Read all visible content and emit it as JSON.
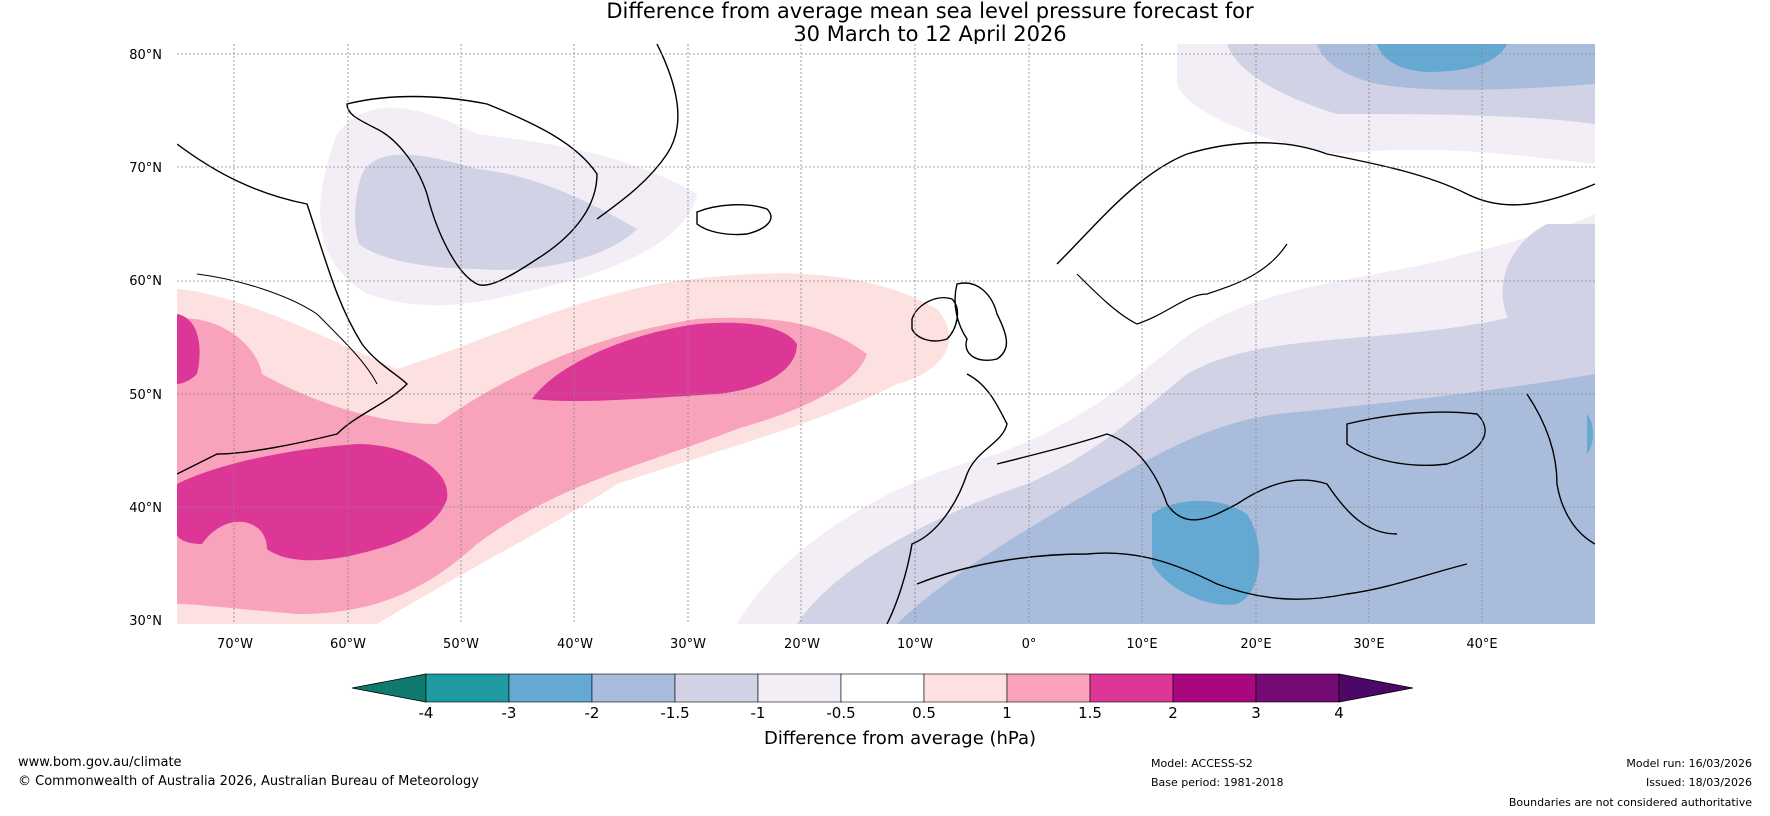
{
  "title": {
    "line1": "Difference from average mean sea level pressure forecast for",
    "line2": "30 March to 12 April 2026"
  },
  "latitude_labels": [
    "80°N",
    "70°N",
    "60°N",
    "50°N",
    "40°N",
    "30°N"
  ],
  "longitude_labels": [
    "70°W",
    "60°W",
    "50°W",
    "40°W",
    "30°W",
    "20°W",
    "10°W",
    "0°",
    "10°E",
    "20°E",
    "30°E",
    "40°E"
  ],
  "colorbar": {
    "ticks": [
      "-4",
      "-3",
      "-2",
      "-1.5",
      "-1",
      "-0.5",
      "0.5",
      "1",
      "1.5",
      "2",
      "3",
      "4"
    ],
    "colors": [
      "#0f7a6e",
      "#1e9aa0",
      "#63a9d1",
      "#a9bcdb",
      "#d1d2e6",
      "#f3eef6",
      "#ffffff",
      "#fde0e0",
      "#f8a2bb",
      "#dc3796",
      "#a8077e",
      "#760a74",
      "#4d0766"
    ],
    "label": "Difference from average (hPa)"
  },
  "footer": {
    "website": "www.bom.gov.au/climate",
    "copyright": "© Commonwealth of Australia 2026, Australian Bureau of Meteorology",
    "model": "Model: ACCESS-S2",
    "base_period": "Base period: 1981-2018",
    "model_run": "Model run: 16/03/2026",
    "issued": "Issued: 18/03/2026",
    "disclaimer": "Boundaries are not considered authoritative"
  }
}
